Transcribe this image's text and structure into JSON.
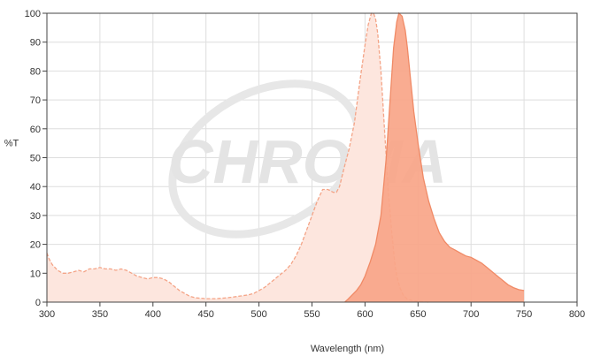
{
  "chart_data": {
    "type": "area",
    "xlabel": "Wavelength (nm)",
    "ylabel": "%T",
    "xlim": [
      300,
      800
    ],
    "ylim": [
      0,
      100
    ],
    "xticks": [
      300,
      350,
      400,
      450,
      500,
      550,
      600,
      650,
      700,
      750,
      800
    ],
    "yticks": [
      0,
      10,
      20,
      30,
      40,
      50,
      60,
      70,
      80,
      90,
      100
    ],
    "grid": true,
    "watermark": "CHROMA",
    "colors": {
      "excitation_fill": "#fde6de",
      "excitation_line": "#f4a487",
      "emission_fill": "#f9a588",
      "emission_line": "#f08a66",
      "frame": "#444444",
      "watermark": "#e4e4e4"
    },
    "series": [
      {
        "id": "excitation",
        "x": [
          300,
          302,
          305,
          310,
          315,
          320,
          325,
          330,
          335,
          340,
          345,
          350,
          355,
          360,
          365,
          370,
          375,
          380,
          385,
          390,
          395,
          400,
          405,
          410,
          415,
          420,
          425,
          430,
          435,
          440,
          450,
          460,
          470,
          480,
          490,
          495,
          500,
          505,
          510,
          515,
          520,
          525,
          530,
          535,
          540,
          545,
          550,
          555,
          560,
          565,
          570,
          573,
          576,
          580,
          585,
          590,
          595,
          600,
          603,
          606,
          608,
          610,
          612,
          615,
          618,
          620,
          622,
          625,
          628,
          630,
          633,
          636,
          640,
          645,
          650,
          655,
          660
        ],
        "y": [
          17,
          15,
          13,
          11,
          10,
          10,
          10.5,
          11,
          10.5,
          11.5,
          11.5,
          12,
          11.5,
          11.5,
          11,
          11.5,
          11,
          10,
          9,
          8.5,
          8,
          8.5,
          8.5,
          8,
          7,
          5.5,
          4,
          3,
          2,
          1.5,
          1.2,
          1.2,
          1.5,
          2,
          2.5,
          3,
          4,
          5,
          6.5,
          8,
          9.5,
          11,
          13,
          16,
          20,
          25,
          30,
          35,
          39,
          39,
          38,
          38,
          40,
          46,
          53,
          62,
          76,
          89,
          96,
          100,
          100,
          98,
          93,
          80,
          62,
          50,
          38,
          25,
          14,
          9,
          5,
          2.5,
          1,
          0.5,
          0.3,
          0.1,
          0
        ],
        "values_note": ""
      },
      {
        "id": "emission",
        "x": [
          581,
          584,
          588,
          592,
          596,
          600,
          605,
          610,
          615,
          620,
          624,
          627,
          630,
          632,
          635,
          638,
          640,
          643,
          646,
          650,
          655,
          660,
          665,
          670,
          675,
          680,
          685,
          690,
          695,
          700,
          705,
          710,
          715,
          720,
          725,
          730,
          735,
          740,
          745,
          750
        ],
        "y": [
          0,
          1,
          2.5,
          4,
          6,
          9,
          14,
          20,
          30,
          50,
          72,
          88,
          97,
          100,
          99,
          94,
          88,
          77,
          66,
          55,
          43,
          35,
          29,
          24,
          21,
          19,
          18,
          17,
          16,
          15.5,
          14.5,
          13.5,
          12,
          10.5,
          9,
          7.5,
          6,
          5,
          4.3,
          4
        ]
      }
    ]
  }
}
